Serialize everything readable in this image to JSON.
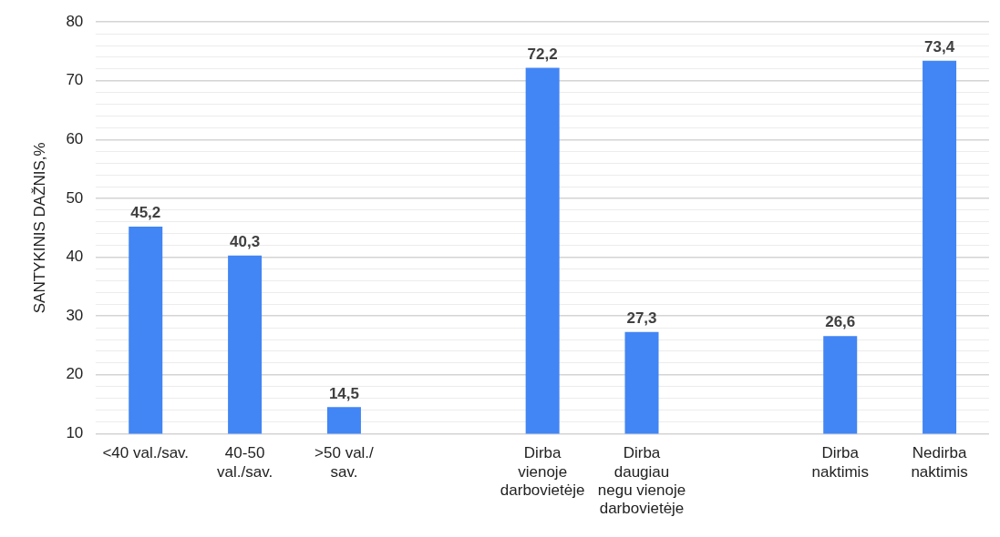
{
  "chart_data": {
    "type": "bar",
    "ylabel": "SANTYKINIS DAŽNIS,%",
    "categories": [
      "<40 val./sav.",
      "40-50\nval./sav.",
      ">50 val./\nsav.",
      null,
      "Dirba\nvienoje\ndarbovietėje",
      "Dirba\ndaugiau\nnegu vienoje\ndarbovietėje",
      null,
      "Dirba\nnaktimis",
      "Nedirba\nnaktimis"
    ],
    "values": [
      45.2,
      40.3,
      14.5,
      null,
      72.2,
      27.3,
      null,
      26.6,
      73.4
    ],
    "value_labels": [
      "45,2",
      "40,3",
      "14,5",
      null,
      "72,2",
      "27,3",
      null,
      "26,6",
      "73,4"
    ],
    "color": "#4285f4",
    "ylim": [
      10,
      80
    ],
    "yticks": [
      10,
      {
        "value": 12,
        "label": null
      },
      {
        "value": 14,
        "label": null
      },
      {
        "value": 16,
        "label": null
      },
      {
        "value": 18,
        "label": null
      },
      20,
      {
        "value": 22,
        "label": null
      },
      {
        "value": 24,
        "label": null
      },
      {
        "value": 26,
        "label": null
      },
      {
        "value": 28,
        "label": null
      },
      30,
      {
        "value": 32,
        "label": null
      },
      {
        "value": 34,
        "label": null
      },
      {
        "value": 36,
        "label": null
      },
      {
        "value": 38,
        "label": null
      },
      40,
      {
        "value": 42,
        "label": null
      },
      {
        "value": 44,
        "label": null
      },
      {
        "value": 46,
        "label": null
      },
      {
        "value": 48,
        "label": null
      },
      50,
      {
        "value": 52,
        "label": null
      },
      {
        "value": 54,
        "label": null
      },
      {
        "value": 56,
        "label": null
      },
      {
        "value": 58,
        "label": null
      },
      60,
      {
        "value": 62,
        "label": null
      },
      {
        "value": 64,
        "label": null
      },
      {
        "value": 66,
        "label": null
      },
      {
        "value": 68,
        "label": null
      },
      70,
      {
        "value": 72,
        "label": null
      },
      {
        "value": 74,
        "label": null
      },
      {
        "value": 76,
        "label": null
      },
      {
        "value": 78,
        "label": null
      },
      80
    ],
    "grid": "y",
    "legend": false
  }
}
